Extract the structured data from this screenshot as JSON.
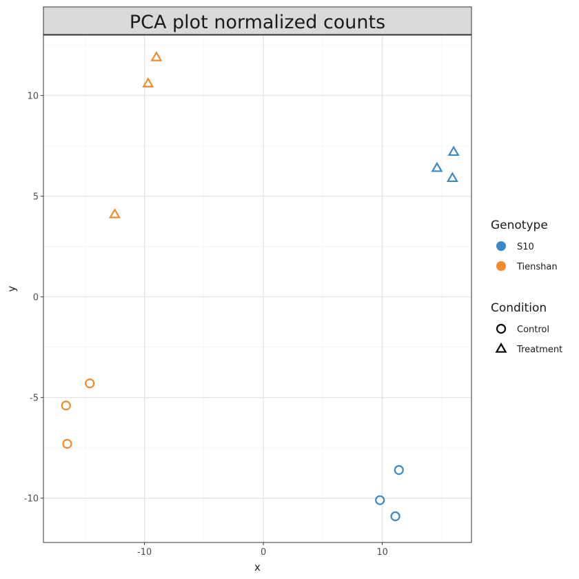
{
  "chart_data": {
    "type": "scatter",
    "title": "PCA plot normalized counts",
    "xlabel": "x",
    "ylabel": "y",
    "xlim": [
      -18.5,
      17.5
    ],
    "ylim": [
      -12.2,
      13.0
    ],
    "x_ticks": [
      -10,
      0,
      10
    ],
    "y_ticks": [
      -10,
      -5,
      0,
      5,
      10
    ],
    "x_tick_labels": [
      "-10",
      "0",
      "10"
    ],
    "y_tick_labels": [
      "-10",
      "-5",
      "0",
      "5",
      "10"
    ],
    "grid": true,
    "legend_position": "right",
    "genotype_legend": {
      "title": "Genotype",
      "entries": [
        {
          "label": "S10",
          "color": "#3a87c5"
        },
        {
          "label": "Tienshan",
          "color": "#f08a2c"
        }
      ]
    },
    "condition_legend": {
      "title": "Condition",
      "entries": [
        {
          "label": "Control",
          "shape": "circle"
        },
        {
          "label": "Treatment",
          "shape": "triangle"
        }
      ]
    },
    "points": [
      {
        "x": -9.0,
        "y": 11.9,
        "genotype": "Tienshan",
        "condition": "Treatment"
      },
      {
        "x": -9.7,
        "y": 10.6,
        "genotype": "Tienshan",
        "condition": "Treatment"
      },
      {
        "x": -12.5,
        "y": 4.1,
        "genotype": "Tienshan",
        "condition": "Treatment"
      },
      {
        "x": -14.6,
        "y": -4.3,
        "genotype": "Tienshan",
        "condition": "Control"
      },
      {
        "x": -16.6,
        "y": -5.4,
        "genotype": "Tienshan",
        "condition": "Control"
      },
      {
        "x": -16.5,
        "y": -7.3,
        "genotype": "Tienshan",
        "condition": "Control"
      },
      {
        "x": 16.0,
        "y": 7.2,
        "genotype": "S10",
        "condition": "Treatment"
      },
      {
        "x": 14.6,
        "y": 6.4,
        "genotype": "S10",
        "condition": "Treatment"
      },
      {
        "x": 15.9,
        "y": 5.9,
        "genotype": "S10",
        "condition": "Treatment"
      },
      {
        "x": 11.4,
        "y": -8.6,
        "genotype": "S10",
        "condition": "Control"
      },
      {
        "x": 9.8,
        "y": -10.1,
        "genotype": "S10",
        "condition": "Control"
      },
      {
        "x": 11.1,
        "y": -10.9,
        "genotype": "S10",
        "condition": "Control"
      }
    ]
  }
}
